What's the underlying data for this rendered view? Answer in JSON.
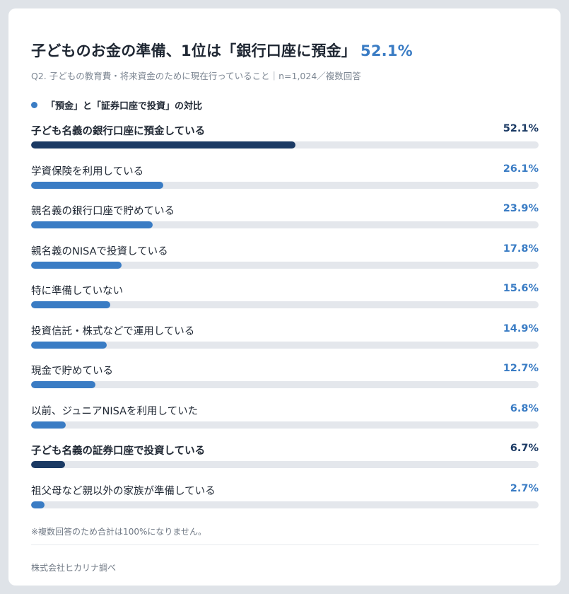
{
  "header": {
    "title": "子どものお金の準備、1位は「銀行口座に預金」",
    "title_highlight": "52.1%",
    "subtitle": "Q2. 子どもの教育費・将来資金のために現在行っていること｜n=1,024／複数回答"
  },
  "legend": {
    "label": "「預金」と「証券口座で投資」の対比",
    "color": "#3a7cc4"
  },
  "colors": {
    "accent": "#1b3a64",
    "normal": "#3a7cc4",
    "track": "#e4e7ec"
  },
  "chart_data": {
    "type": "bar",
    "orientation": "horizontal",
    "unit": "%",
    "xlim": [
      0,
      100
    ],
    "categories": [
      "子ども名義の銀行口座に預金している",
      "学資保険を利用している",
      "親名義の銀行口座で貯めている",
      "親名義のNISAで投資している",
      "特に準備していない",
      "投資信託・株式などで運用している",
      "現金で貯めている",
      "以前、ジュニアNISAを利用していた",
      "子ども名義の証券口座で投資している",
      "祖父母など親以外の家族が準備している"
    ],
    "values": [
      52.1,
      26.1,
      23.9,
      17.8,
      15.6,
      14.9,
      12.7,
      6.8,
      6.7,
      2.7
    ],
    "value_labels": [
      "52.1%",
      "26.1%",
      "23.9%",
      "17.8%",
      "15.6%",
      "14.9%",
      "12.7%",
      "6.8%",
      "6.7%",
      "2.7%"
    ],
    "highlighted": [
      true,
      false,
      false,
      false,
      false,
      false,
      false,
      false,
      true,
      false
    ]
  },
  "footer": {
    "note": "※複数回答のため合計は100%になりません。",
    "source": "株式会社ヒカリナ調べ"
  }
}
